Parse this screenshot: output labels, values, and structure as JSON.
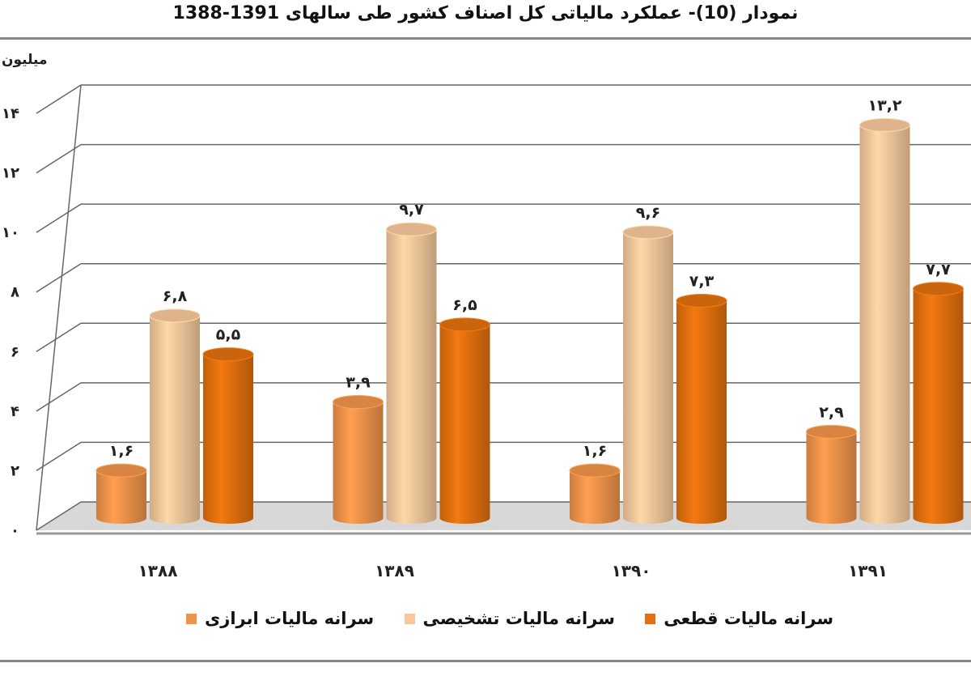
{
  "chart_data": {
    "type": "bar",
    "title": "نمودار (10)- عملکرد مالیاتی کل اصناف کشور  طی سالهای 1391-1388",
    "ylabel": "میلیون",
    "xlabel": "",
    "categories": [
      "۱۳۸۸",
      "۱۳۸۹",
      "۱۳۹۰",
      "۱۳۹۱"
    ],
    "ylim": [
      0,
      14
    ],
    "yticks": [
      "۰",
      "۲",
      "۴",
      "۶",
      "۸",
      "۱۰",
      "۱۲",
      "۱۴"
    ],
    "grid": true,
    "legend_position": "bottom",
    "series": [
      {
        "name": "سرانه مالیات ابرازی",
        "color": "#f0934a",
        "values": [
          1.6,
          3.9,
          1.6,
          2.9
        ],
        "labels": [
          "۱,۶",
          "۳,۹",
          "۱,۶",
          "۲,۹"
        ]
      },
      {
        "name": "سرانه مالیات تشخیصی",
        "color": "#f8c89c",
        "values": [
          6.8,
          9.7,
          9.6,
          13.2
        ],
        "labels": [
          "۶,۸",
          "۹,۷",
          "۹,۶",
          "۱۳,۲"
        ]
      },
      {
        "name": "سرانه مالیات قطعی",
        "color": "#e2700e",
        "values": [
          5.5,
          6.5,
          7.3,
          7.7
        ],
        "labels": [
          "۵,۵",
          "۶,۵",
          "۷,۳",
          "۷,۷"
        ]
      }
    ]
  }
}
